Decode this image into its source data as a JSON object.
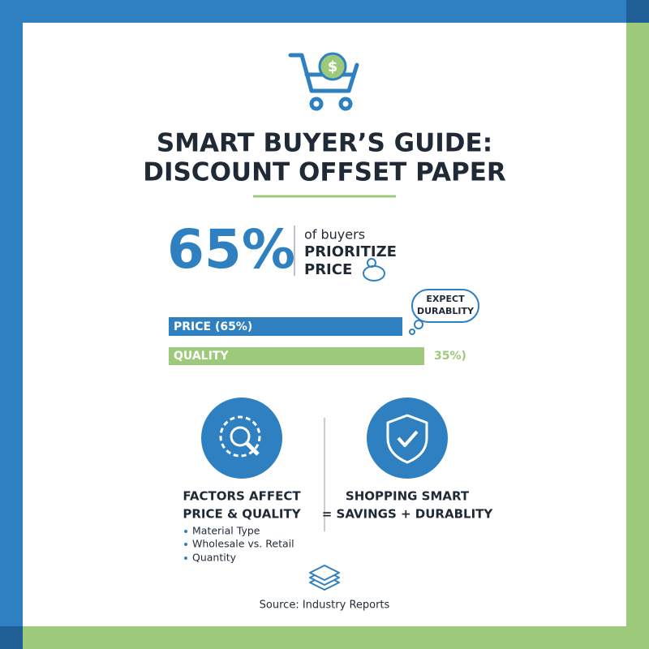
{
  "header": {
    "title_lines": [
      "SMART BUYER’S GUIDE:",
      "DISCOUNT OFFSET PAPER"
    ]
  },
  "stat": {
    "figure": "65%",
    "lines": [
      "of buyers",
      "PRIORITIZE",
      "PRICE"
    ]
  },
  "bubble": {
    "lines": [
      "EXPECT",
      "DURABLITY"
    ]
  },
  "bars": [
    {
      "label": "PRICE (65%)"
    },
    {
      "label": "QUALITY",
      "side_label": "35%)"
    }
  ],
  "panels": [
    {
      "title_lines": [
        "FACTORS AFFECT",
        "PRICE & QUALITY"
      ],
      "items": [
        "Material Type",
        "Wholesale vs. Retail",
        "Quantity"
      ]
    },
    {
      "title_lines": [
        "SHOPPING SMART",
        "= SAVINGS + DURABLITY"
      ]
    }
  ],
  "footer": {
    "source": "Source: Industry Reports"
  }
}
